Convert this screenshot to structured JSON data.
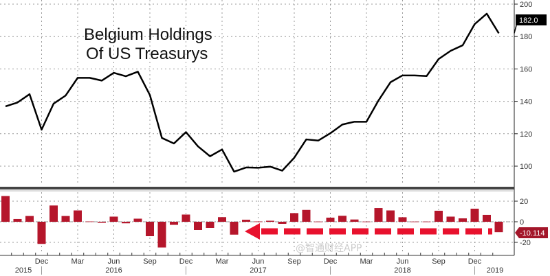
{
  "chart_data": [
    {
      "type": "line",
      "title_lines": [
        "Belgium Holdings",
        "Of US Treasurys"
      ],
      "x": [
        "2015-09",
        "2015-10",
        "2015-11",
        "2015-12",
        "2016-01",
        "2016-02",
        "2016-03",
        "2016-04",
        "2016-05",
        "2016-06",
        "2016-07",
        "2016-08",
        "2016-09",
        "2016-10",
        "2016-11",
        "2016-12",
        "2017-01",
        "2017-02",
        "2017-03",
        "2017-04",
        "2017-05",
        "2017-06",
        "2017-07",
        "2017-08",
        "2017-09",
        "2017-10",
        "2017-11",
        "2017-12",
        "2018-01",
        "2018-02",
        "2018-03",
        "2018-04",
        "2018-05",
        "2018-06",
        "2018-07",
        "2018-08",
        "2018-09",
        "2018-10",
        "2018-11",
        "2018-12",
        "2019-01",
        "2019-02"
      ],
      "values": [
        136.9,
        139.3,
        144.4,
        122.5,
        138.6,
        143.6,
        154.5,
        154.5,
        152.8,
        157.6,
        155.5,
        158.3,
        143.9,
        117.4,
        114.0,
        121.0,
        112.2,
        106.1,
        110.3,
        96.6,
        99.2,
        99.0,
        99.7,
        97.2,
        105.2,
        116.5,
        115.8,
        120.3,
        125.7,
        127.4,
        127.4,
        140.5,
        151.8,
        156.0,
        156.0,
        155.6,
        166.1,
        171.2,
        174.6,
        187.7,
        194.1,
        182.0
      ],
      "ylim": [
        90,
        202
      ],
      "yticks": [
        "100",
        "120",
        "140",
        "160",
        "180",
        "200"
      ],
      "last_value_label": "182.0",
      "line_color": "#000000",
      "grid": true,
      "axis_side": "right"
    },
    {
      "type": "bar",
      "x": [
        "2015-09",
        "2015-10",
        "2015-11",
        "2015-12",
        "2016-01",
        "2016-02",
        "2016-03",
        "2016-04",
        "2016-05",
        "2016-06",
        "2016-07",
        "2016-08",
        "2016-09",
        "2016-10",
        "2016-11",
        "2016-12",
        "2017-01",
        "2017-02",
        "2017-03",
        "2017-04",
        "2017-05",
        "2017-06",
        "2017-07",
        "2017-08",
        "2017-09",
        "2017-10",
        "2017-11",
        "2017-12",
        "2018-01",
        "2018-02",
        "2018-03",
        "2018-04",
        "2018-05",
        "2018-06",
        "2018-07",
        "2018-08",
        "2018-09",
        "2018-10",
        "2018-11",
        "2018-12",
        "2019-01",
        "2019-02"
      ],
      "values": [
        25,
        2.7,
        5.6,
        -21.5,
        15.8,
        5.6,
        11,
        0.3,
        -1,
        5,
        -1.5,
        3,
        -14,
        -25,
        -3,
        7,
        -8,
        -6,
        4.5,
        -12.5,
        2,
        0.3,
        1,
        -2,
        8.4,
        11.5,
        0.2,
        4,
        5.8,
        2.2,
        0.2,
        13.3,
        11,
        4.4,
        0.2,
        0.2,
        10.7,
        5,
        3.3,
        12.7,
        6.7,
        -10.114
      ],
      "ylim": [
        -32,
        32
      ],
      "yticks": [
        "20",
        "0",
        "-20"
      ],
      "last_value_label": "-10.114",
      "bar_color": "#b5162b",
      "annotation_arrow_color": "#e8112d",
      "grid": true,
      "axis_side": "right"
    }
  ],
  "x_axis": {
    "month_ticks": [
      {
        "month": "2015-12",
        "label": "Dec"
      },
      {
        "month": "2016-03",
        "label": "Mar"
      },
      {
        "month": "2016-06",
        "label": "Jun"
      },
      {
        "month": "2016-09",
        "label": "Sep"
      },
      {
        "month": "2016-12",
        "label": "Dec"
      },
      {
        "month": "2017-03",
        "label": "Mar"
      },
      {
        "month": "2017-06",
        "label": "Jun"
      },
      {
        "month": "2017-09",
        "label": "Sep"
      },
      {
        "month": "2017-12",
        "label": "Dec"
      },
      {
        "month": "2018-03",
        "label": "Mar"
      },
      {
        "month": "2018-06",
        "label": "Jun"
      },
      {
        "month": "2018-09",
        "label": "Sep"
      },
      {
        "month": "2018-12",
        "label": "Dec"
      }
    ],
    "year_labels": [
      {
        "month": "2015-09",
        "label": "2015"
      },
      {
        "month": "2016-06",
        "label": "2016"
      },
      {
        "month": "2017-06",
        "label": "2017"
      },
      {
        "month": "2018-06",
        "label": "2018"
      },
      {
        "month": "2019-02",
        "label": "2019"
      }
    ]
  },
  "watermark": "@智通财经APP"
}
